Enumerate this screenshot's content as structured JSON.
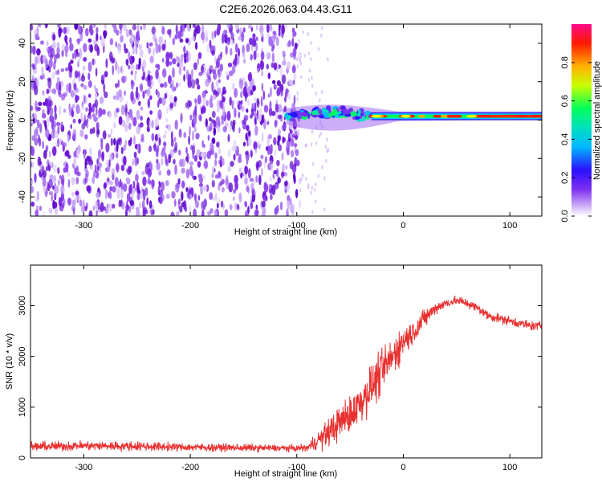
{
  "title": "C2E6.2026.063.04.43.G11",
  "chart_data": [
    {
      "type": "heatmap",
      "title": "C2E6.2026.063.04.43.G11",
      "xlabel": "Height of straight line (km)",
      "ylabel": "Frequency (Hz)",
      "xlim": [
        -350,
        130
      ],
      "ylim": [
        -50,
        50
      ],
      "xticks": [
        -300,
        -200,
        -100,
        0,
        100
      ],
      "yticks": [
        -40,
        -20,
        0,
        20,
        40
      ],
      "description_regions": [
        {
          "x_range": [
            -350,
            -100
          ],
          "freq_range": [
            -50,
            50
          ],
          "amplitude": [
            0.0,
            0.2
          ],
          "pattern": "broadband noise"
        },
        {
          "x_range": [
            -110,
            -30
          ],
          "freq_center": 2,
          "freq_halfwidth": 5,
          "amplitude": [
            0.2,
            0.6
          ],
          "pattern": "signal onset"
        },
        {
          "x_range": [
            -30,
            130
          ],
          "freq_center": 2,
          "freq_halfwidth": 2,
          "amplitude": [
            0.4,
            1.0
          ],
          "pattern": "tone"
        }
      ],
      "colorbar": {
        "label": "Normalized spectral amplitude",
        "range": [
          0.0,
          1.0
        ],
        "ticks": [
          0.0,
          0.2,
          0.4,
          0.6,
          0.8
        ],
        "colors": [
          "#ffffff",
          "#9a5cf0",
          "#2a10ff",
          "#00d6ff",
          "#00ff5a",
          "#e8ff00",
          "#ff8c00",
          "#ff0000",
          "#ff1493"
        ]
      },
      "series_color": "#6a0fd8"
    },
    {
      "type": "line",
      "xlabel": "Height of straight line (km)",
      "ylabel": "SNR (10 * v/v)",
      "xlim": [
        -350,
        130
      ],
      "ylim": [
        0,
        3800
      ],
      "xticks": [
        -300,
        -200,
        -100,
        0,
        100
      ],
      "yticks": [
        0,
        1000,
        2000,
        3000
      ],
      "color": "#e83030",
      "x": [
        -350,
        -300,
        -250,
        -200,
        -150,
        -100,
        -90,
        -80,
        -70,
        -60,
        -50,
        -40,
        -30,
        -20,
        -10,
        0,
        10,
        20,
        30,
        40,
        50,
        60,
        70,
        80,
        90,
        100,
        110,
        120,
        130
      ],
      "values": [
        220,
        240,
        230,
        210,
        200,
        190,
        200,
        350,
        500,
        700,
        850,
        1100,
        1400,
        1700,
        2000,
        2300,
        2500,
        2750,
        2950,
        3050,
        3100,
        3050,
        2950,
        2800,
        2750,
        2700,
        2650,
        2600,
        2600
      ],
      "noise_amplitude": [
        150,
        150,
        150,
        120,
        120,
        100,
        120,
        300,
        450,
        550,
        600,
        650,
        700,
        700,
        600,
        500,
        400,
        300,
        200,
        150,
        150,
        150,
        150,
        150,
        150,
        150,
        150,
        150,
        150
      ]
    }
  ]
}
